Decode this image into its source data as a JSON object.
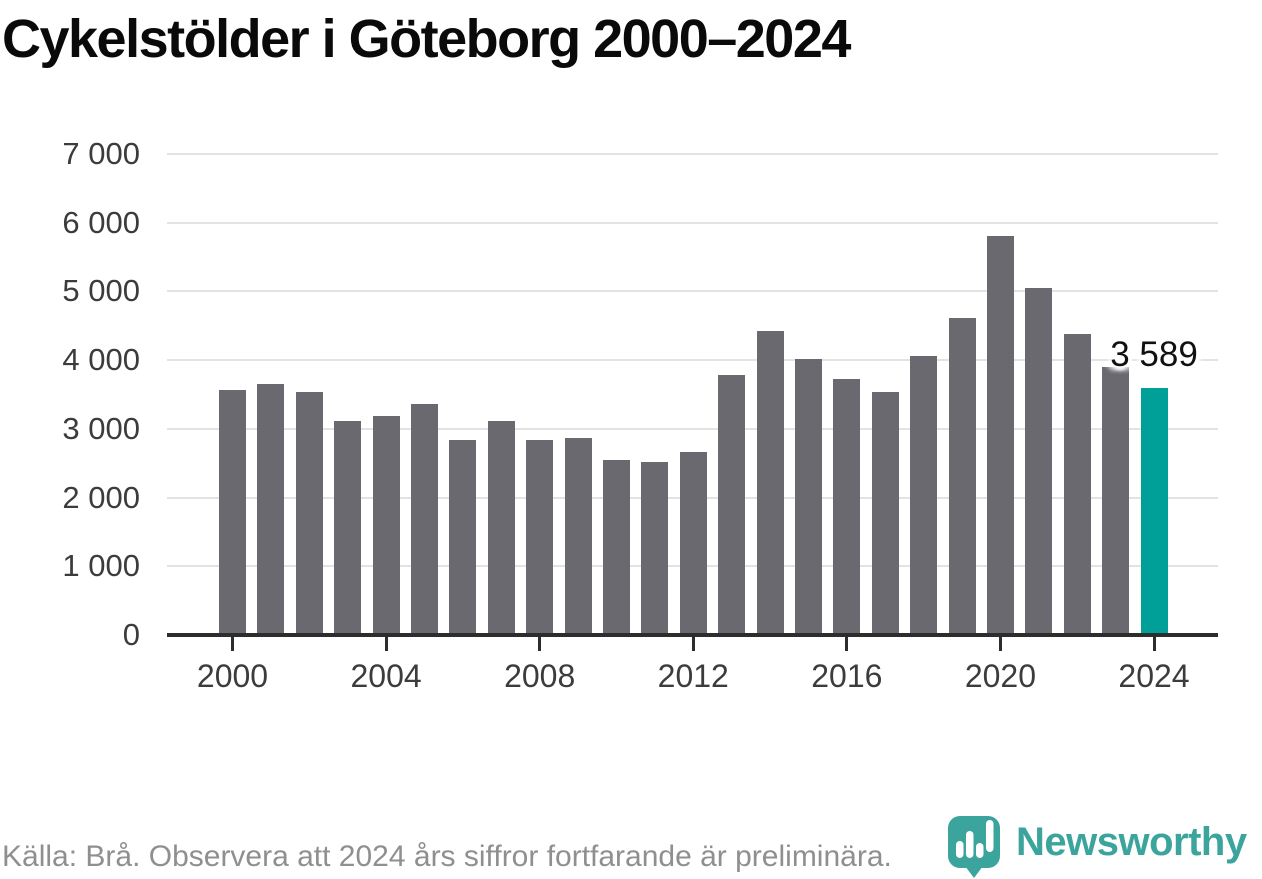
{
  "title": "Cykelstölder i Göteborg 2000–2024",
  "chart_data": {
    "type": "bar",
    "title": "Cykelstölder i Göteborg 2000–2024",
    "x": [
      2000,
      2001,
      2002,
      2003,
      2004,
      2005,
      2006,
      2007,
      2008,
      2009,
      2010,
      2011,
      2012,
      2013,
      2014,
      2015,
      2016,
      2017,
      2018,
      2019,
      2020,
      2021,
      2022,
      2023,
      2024
    ],
    "values": [
      3570,
      3660,
      3530,
      3120,
      3180,
      3360,
      2840,
      3120,
      2840,
      2870,
      2550,
      2520,
      2660,
      3780,
      4430,
      4020,
      3720,
      3530,
      4060,
      4620,
      5800,
      5050,
      4380,
      3900,
      3589
    ],
    "highlight_year": 2024,
    "annotation": {
      "year": 2024,
      "label": "3 589"
    },
    "ylim": [
      0,
      7000
    ],
    "yticks": [
      0,
      1000,
      2000,
      3000,
      4000,
      5000,
      6000,
      7000
    ],
    "ytick_labels": [
      "0",
      "1 000",
      "2 000",
      "3 000",
      "4 000",
      "5 000",
      "6 000",
      "7 000"
    ],
    "xticks": [
      2000,
      2004,
      2008,
      2012,
      2016,
      2020,
      2024
    ],
    "xtick_labels": [
      "2000",
      "2004",
      "2008",
      "2012",
      "2016",
      "2020",
      "2024"
    ],
    "grid": "horizontal",
    "legend": "none",
    "bar_color": "#69696f",
    "highlight_color": "#00a099"
  },
  "footer": {
    "source_text": "Källa: Brå. Observera att 2024 års siffror fortfarande är preliminära."
  },
  "logo": {
    "wordmark": "Newsworthy",
    "icon": "newsworthy-chart-pin-icon",
    "color": "#3aa49d"
  },
  "colors": {
    "teal": "#00a099",
    "bar-gray": "#69696f",
    "logo-teal": "#3aa49d",
    "grid": "#e3e3e3",
    "axis": "#2d2d2d",
    "axis-text": "#3c3c3c",
    "muted": "#8f8f8f",
    "title": "#0a0a0a",
    "annotation": "#111111"
  }
}
